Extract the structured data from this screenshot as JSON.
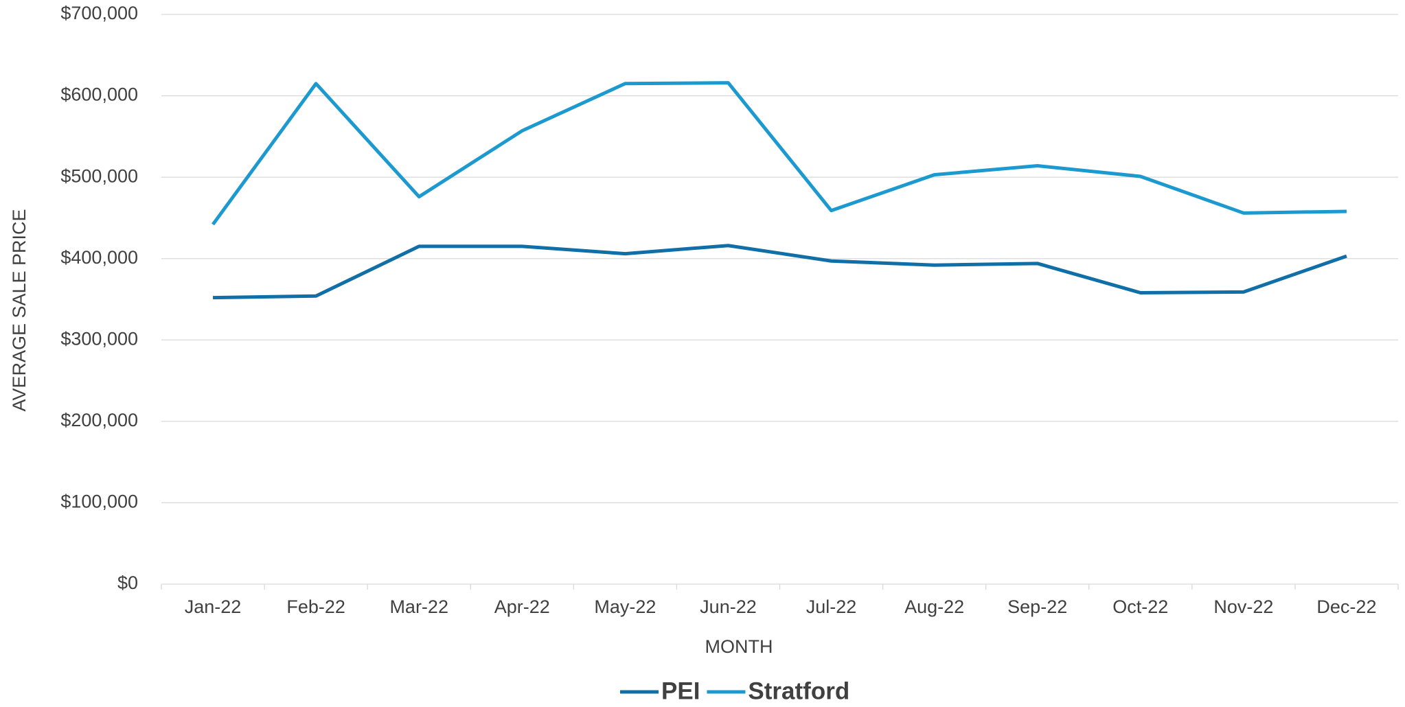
{
  "chart_data": {
    "type": "line",
    "y_label": "AVERAGE SALE PRICE",
    "x_label": "MONTH",
    "categories": [
      "Jan-22",
      "Feb-22",
      "Mar-22",
      "Apr-22",
      "May-22",
      "Jun-22",
      "Jul-22",
      "Aug-22",
      "Sep-22",
      "Oct-22",
      "Nov-22",
      "Dec-22"
    ],
    "series": [
      {
        "name": "PEI",
        "color": "#0f6fa6",
        "values": [
          352000,
          354000,
          415000,
          415000,
          406000,
          416000,
          397000,
          392000,
          394000,
          358000,
          359000,
          403000
        ]
      },
      {
        "name": "Stratford",
        "color": "#1c9ad0",
        "values": [
          442000,
          615000,
          476000,
          557000,
          615000,
          616000,
          459000,
          503000,
          514000,
          501000,
          456000,
          458000
        ]
      }
    ],
    "ylim": [
      0,
      700000
    ],
    "yticks": [
      {
        "value": 0,
        "label": "$0"
      },
      {
        "value": 100000,
        "label": "$100,000"
      },
      {
        "value": 200000,
        "label": "$200,000"
      },
      {
        "value": 300000,
        "label": "$300,000"
      },
      {
        "value": 400000,
        "label": "$400,000"
      },
      {
        "value": 500000,
        "label": "$500,000"
      },
      {
        "value": 600000,
        "label": "$600,000"
      },
      {
        "value": 700000,
        "label": "$700,000"
      }
    ],
    "grid": true,
    "legend": "bottom"
  }
}
